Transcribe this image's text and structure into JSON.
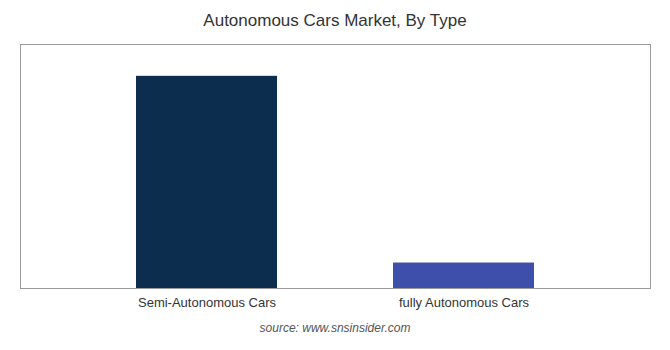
{
  "chart_data": {
    "type": "bar",
    "title": "Autonomous Cars Market, By Type",
    "categories": [
      "Semi-Autonomous Cars",
      "fully Autonomous Cars"
    ],
    "values": [
      100,
      12
    ],
    "colors": [
      "#0d2d4e",
      "#3d4faa"
    ],
    "ylim": [
      0,
      115
    ],
    "tick_labels": "x",
    "grid": false,
    "caption": "source: www.snsinsider.com"
  }
}
